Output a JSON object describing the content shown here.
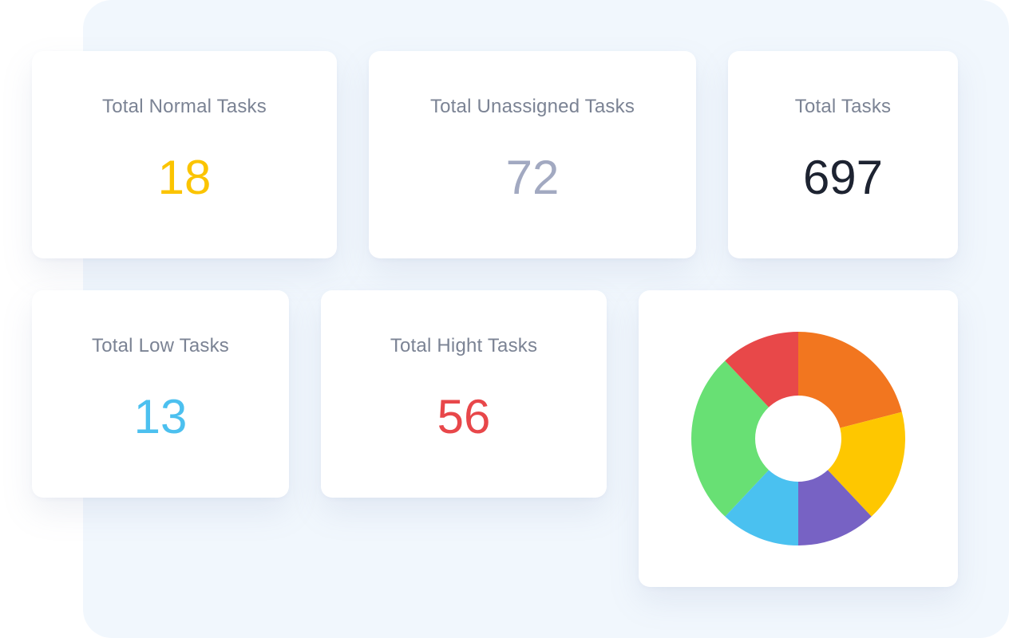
{
  "cards": {
    "normal": {
      "label": "Total Normal Tasks",
      "value": "18",
      "color": "#fbc400"
    },
    "unassigned": {
      "label": "Total Unassigned Tasks",
      "value": "72",
      "color": "#a2a9c1"
    },
    "total": {
      "label": "Total Tasks",
      "value": "697",
      "color": "#1d2331"
    },
    "low": {
      "label": "Total Low Tasks",
      "value": "13",
      "color": "#4cc0ef"
    },
    "high": {
      "label": "Total Hight Tasks",
      "value": "56",
      "color": "#e8474a"
    }
  },
  "chart_data": {
    "type": "pie",
    "variant": "donut",
    "title": "",
    "slices": [
      {
        "value": 21,
        "color": "#f2761f"
      },
      {
        "value": 17,
        "color": "#fec700"
      },
      {
        "value": 12,
        "color": "#7762c4"
      },
      {
        "value": 12,
        "color": "#4ac1f0"
      },
      {
        "value": 26,
        "color": "#68e074"
      },
      {
        "value": 12,
        "color": "#e84849"
      }
    ],
    "legend": "none"
  }
}
